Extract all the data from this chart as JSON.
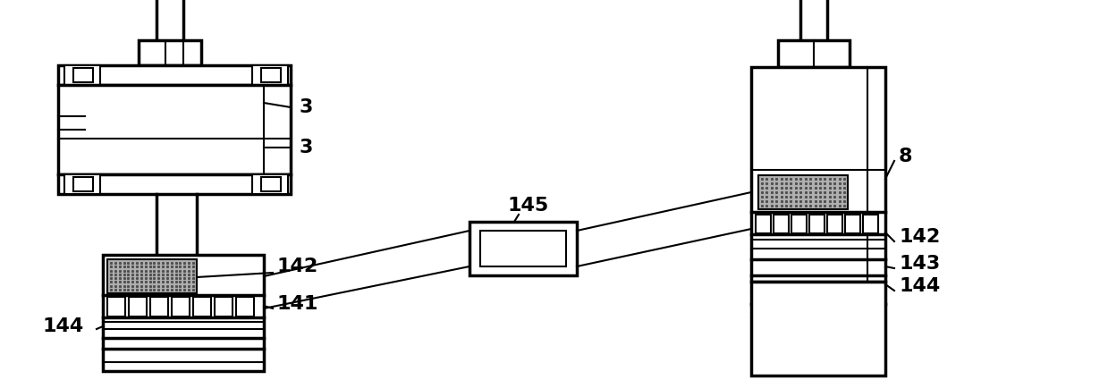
{
  "bg_color": "#ffffff",
  "lc": "#000000",
  "lw": 2.5,
  "lw2": 1.5,
  "fs": 16,
  "gray": "#b0b0b0",
  "dark_gray": "#505050"
}
